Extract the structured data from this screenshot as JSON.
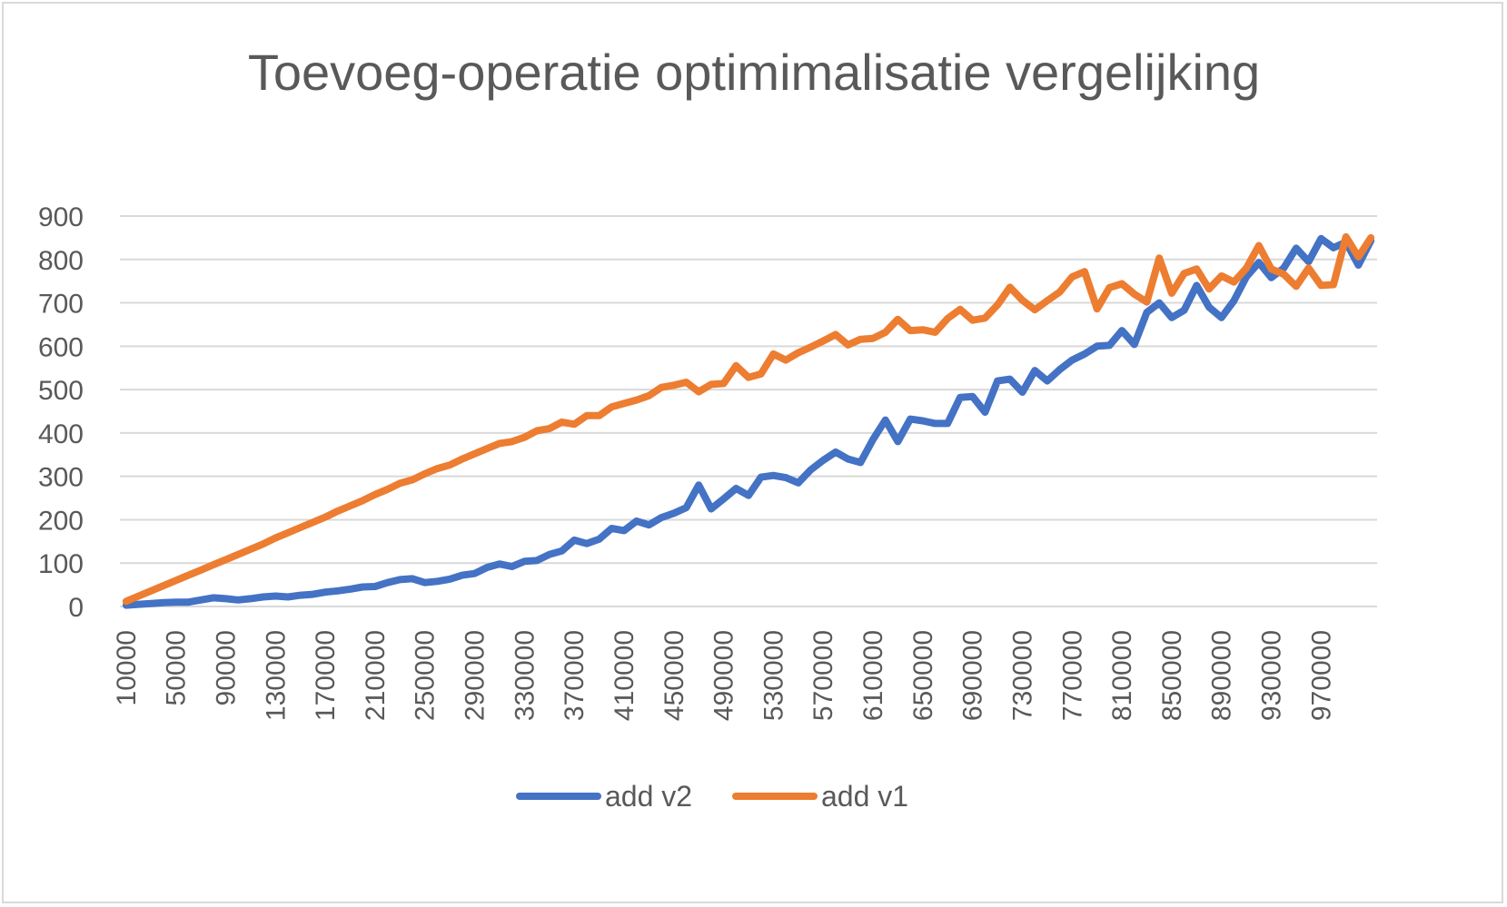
{
  "chart_data": {
    "type": "line",
    "title": "Toevoeg-operatie optimimalisatie vergelijking",
    "xlabel": "",
    "ylabel": "",
    "ylim": [
      0,
      900
    ],
    "y_ticks": [
      0,
      100,
      200,
      300,
      400,
      500,
      600,
      700,
      800,
      900
    ],
    "x_start": 10000,
    "x_step": 10000,
    "x_tick_labels": [
      "10000",
      "50000",
      "90000",
      "130000",
      "170000",
      "210000",
      "250000",
      "290000",
      "330000",
      "370000",
      "410000",
      "450000",
      "490000",
      "530000",
      "570000",
      "610000",
      "650000",
      "690000",
      "730000",
      "770000",
      "810000",
      "850000",
      "890000",
      "930000",
      "970000"
    ],
    "grid": true,
    "legend_position": "bottom",
    "colors": {
      "add_v2": "#4472c4",
      "add_v1": "#ed7d31",
      "grid": "#d9d9d9",
      "text": "#595959"
    },
    "series": [
      {
        "name": "add v2",
        "color": "#4472c4",
        "values": [
          3,
          5,
          7,
          9,
          10,
          10,
          15,
          20,
          18,
          15,
          18,
          22,
          24,
          22,
          26,
          28,
          33,
          36,
          40,
          45,
          46,
          55,
          62,
          64,
          55,
          58,
          63,
          72,
          76,
          90,
          98,
          92,
          104,
          106,
          120,
          128,
          153,
          145,
          155,
          180,
          175,
          197,
          188,
          205,
          215,
          228,
          280,
          225,
          248,
          272,
          256,
          298,
          302,
          297,
          285,
          315,
          337,
          356,
          340,
          332,
          385,
          430,
          380,
          432,
          428,
          422,
          422,
          482,
          484,
          448,
          520,
          524,
          494,
          544,
          520,
          546,
          568,
          582,
          600,
          602,
          636,
          604,
          678,
          700,
          666,
          683,
          740,
          690,
          666,
          705,
          760,
          793,
          758,
          780,
          826,
          795,
          848,
          827,
          840,
          787,
          843
        ]
      },
      {
        "name": "add v1",
        "color": "#ed7d31",
        "values": [
          12,
          24,
          36,
          48,
          60,
          72,
          84,
          96,
          108,
          120,
          132,
          144,
          158,
          170,
          182,
          194,
          206,
          220,
          232,
          244,
          258,
          270,
          284,
          292,
          306,
          318,
          326,
          340,
          352,
          364,
          376,
          380,
          390,
          405,
          410,
          425,
          420,
          440,
          440,
          460,
          468,
          476,
          486,
          505,
          510,
          517,
          495,
          512,
          514,
          555,
          528,
          536,
          582,
          568,
          585,
          598,
          612,
          627,
          603,
          616,
          618,
          632,
          662,
          636,
          638,
          632,
          664,
          685,
          660,
          665,
          695,
          736,
          706,
          684,
          705,
          725,
          760,
          772,
          686,
          735,
          744,
          720,
          702,
          803,
          722,
          768,
          778,
          732,
          762,
          748,
          780,
          832,
          778,
          766,
          738,
          780,
          740,
          742,
          852,
          806,
          850
        ]
      }
    ]
  }
}
